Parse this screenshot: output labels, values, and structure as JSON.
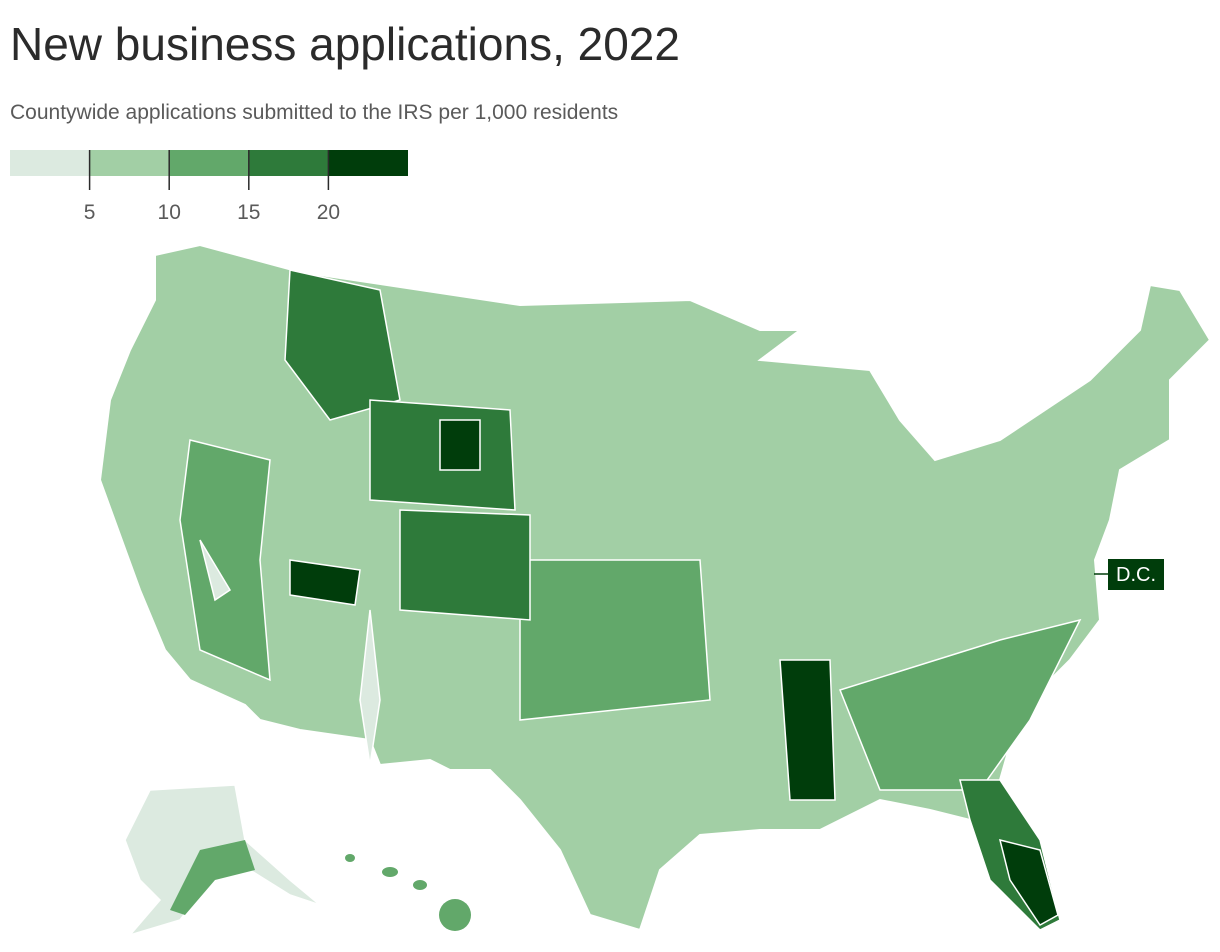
{
  "chart_data": {
    "type": "choropleth",
    "title": "New business applications, 2022",
    "subtitle": "Countywide applications submitted to the IRS per 1,000 residents",
    "legend_colors": [
      "#dceae0",
      "#a2cfa5",
      "#62a86a",
      "#2e7a3a",
      "#003d0b"
    ],
    "xlim": [
      0,
      25
    ],
    "xticks": [
      5,
      10,
      15,
      20
    ],
    "annotation": "D.C.",
    "annotation_color": "#003d0b"
  }
}
